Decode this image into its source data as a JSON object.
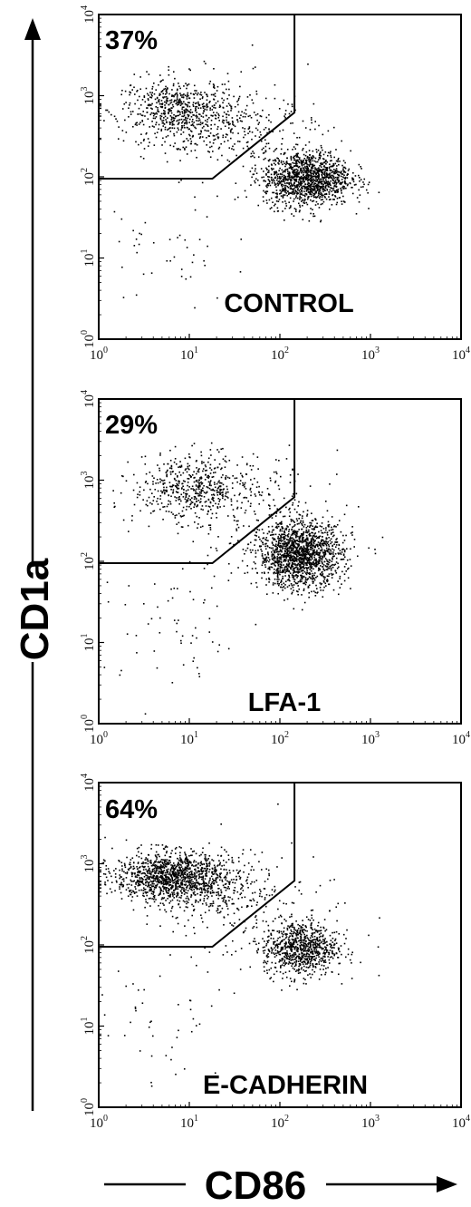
{
  "chart_data": {
    "type": "scatter",
    "layout": "three vertically stacked flow cytometry dot plots",
    "x_axis_title": "CD86",
    "y_axis_title": "CD1a",
    "x_scale": "log",
    "y_scale": "log",
    "xlim": [
      1,
      10000
    ],
    "ylim": [
      1,
      10000
    ],
    "tick_labels": [
      "10",
      "10",
      "10",
      "10",
      "10"
    ],
    "tick_exponents": [
      "0",
      "1",
      "2",
      "3",
      "4"
    ],
    "grid": false,
    "point_color": "#000000",
    "gate_polyline": [
      [
        1,
        95
      ],
      [
        18,
        95
      ],
      [
        145,
        620
      ],
      [
        145,
        10000
      ]
    ],
    "panels": [
      {
        "percent_label": "37%",
        "condition_label": "CONTROL",
        "populations": [
          {
            "role": "gated",
            "center": [
              8,
              650
            ],
            "spread_log10": [
              0.32,
              0.2
            ],
            "n": 650
          },
          {
            "role": "gated-tail",
            "center": [
              25,
              450
            ],
            "spread_log10": [
              0.35,
              0.2
            ],
            "n": 140
          },
          {
            "role": "ungated-main",
            "center": [
              200,
              95
            ],
            "spread_log10": [
              0.24,
              0.17
            ],
            "n": 1300
          },
          {
            "role": "scatter",
            "center": [
              80,
              200
            ],
            "spread_log10": [
              0.5,
              0.4
            ],
            "n": 120
          },
          {
            "role": "low-tail",
            "center": [
              6,
              12
            ],
            "spread_log10": [
              0.35,
              0.38
            ],
            "n": 40
          }
        ]
      },
      {
        "percent_label": "29%",
        "condition_label": "LFA-1",
        "populations": [
          {
            "role": "gated",
            "center": [
              10,
              800
            ],
            "spread_log10": [
              0.3,
              0.2
            ],
            "n": 480
          },
          {
            "role": "gated-tail",
            "center": [
              35,
              700
            ],
            "spread_log10": [
              0.35,
              0.22
            ],
            "n": 120
          },
          {
            "role": "ungated-main",
            "center": [
              170,
              120
            ],
            "spread_log10": [
              0.23,
              0.2
            ],
            "n": 1500
          },
          {
            "role": "scatter",
            "center": [
              80,
              250
            ],
            "spread_log10": [
              0.5,
              0.4
            ],
            "n": 140
          },
          {
            "role": "low-tail",
            "center": [
              7,
              12
            ],
            "spread_log10": [
              0.4,
              0.4
            ],
            "n": 55
          }
        ]
      },
      {
        "percent_label": "64%",
        "condition_label": "E-CADHERIN",
        "populations": [
          {
            "role": "gated",
            "center": [
              6,
              700
            ],
            "spread_log10": [
              0.3,
              0.15
            ],
            "n": 1150
          },
          {
            "role": "gated-tail",
            "center": [
              20,
              500
            ],
            "spread_log10": [
              0.35,
              0.2
            ],
            "n": 280
          },
          {
            "role": "ungated-main",
            "center": [
              170,
              90
            ],
            "spread_log10": [
              0.2,
              0.17
            ],
            "n": 800
          },
          {
            "role": "scatter",
            "center": [
              60,
              200
            ],
            "spread_log10": [
              0.55,
              0.4
            ],
            "n": 150
          },
          {
            "role": "low-tail",
            "center": [
              5,
              12
            ],
            "spread_log10": [
              0.35,
              0.4
            ],
            "n": 45
          }
        ]
      }
    ]
  }
}
